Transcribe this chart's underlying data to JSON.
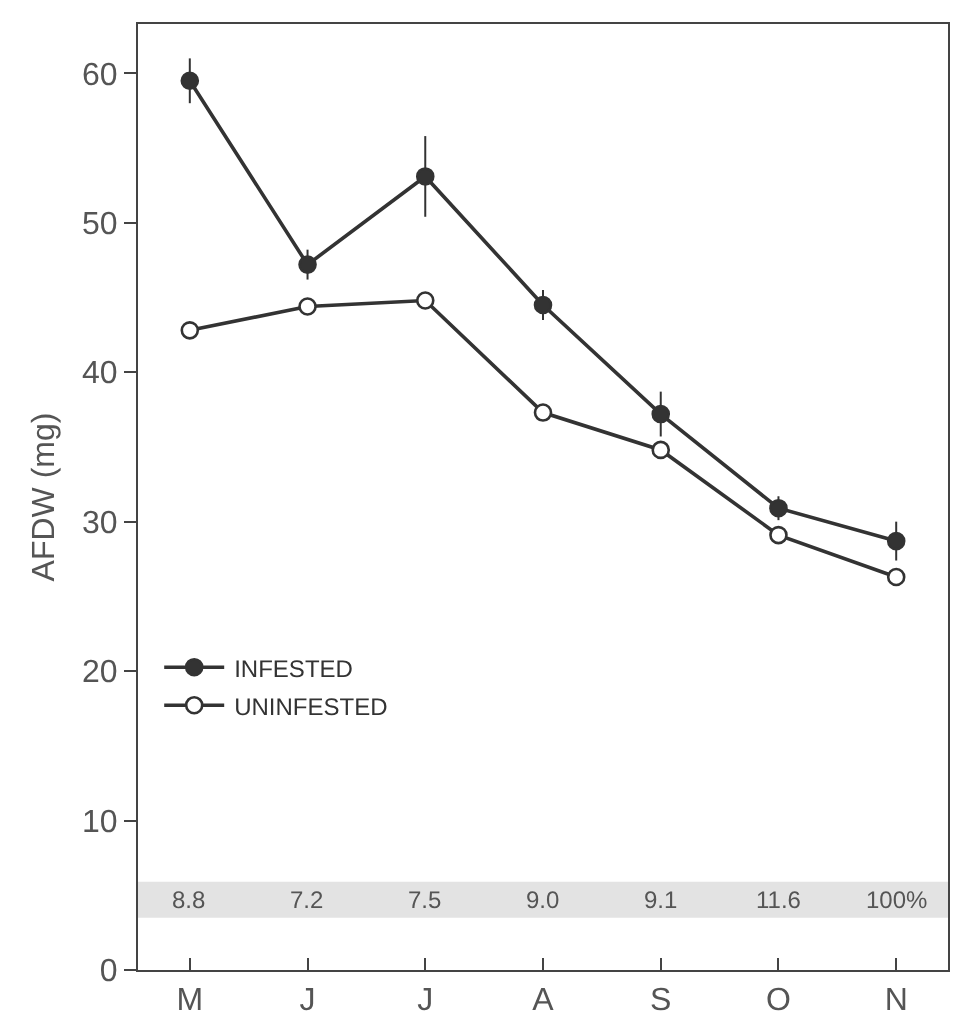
{
  "chart_data": {
    "type": "line",
    "ylabel": "AFDW (mg)",
    "categories": [
      "M",
      "J",
      "J",
      "A",
      "S",
      "O",
      "N"
    ],
    "series": [
      {
        "name": "INFESTED",
        "color": "#333333",
        "values": [
          59.5,
          47.2,
          53.1,
          44.5,
          37.2,
          30.9,
          28.7
        ],
        "errors": [
          1.5,
          1,
          2.7,
          1,
          1.5,
          0.8,
          1.3
        ]
      },
      {
        "name": "UNINFESTED",
        "color": "#333333",
        "values": [
          42.8,
          44.4,
          44.8,
          37.3,
          34.8,
          29.1,
          26.3
        ]
      }
    ],
    "ylim": [
      0,
      63.3
    ],
    "yticks": [
      0,
      10,
      20,
      30,
      40,
      50,
      60
    ],
    "bands": [
      {
        "axis": "y",
        "from": 3.5,
        "to": 5.9,
        "color": "#e3e3e3"
      }
    ],
    "annotations": [
      "8.8",
      "7.2",
      "7.5",
      "9.0",
      "9.1",
      "11.6",
      "100%"
    ],
    "grid": false,
    "legend": "left",
    "marker": "circle",
    "line_style": "solid"
  }
}
